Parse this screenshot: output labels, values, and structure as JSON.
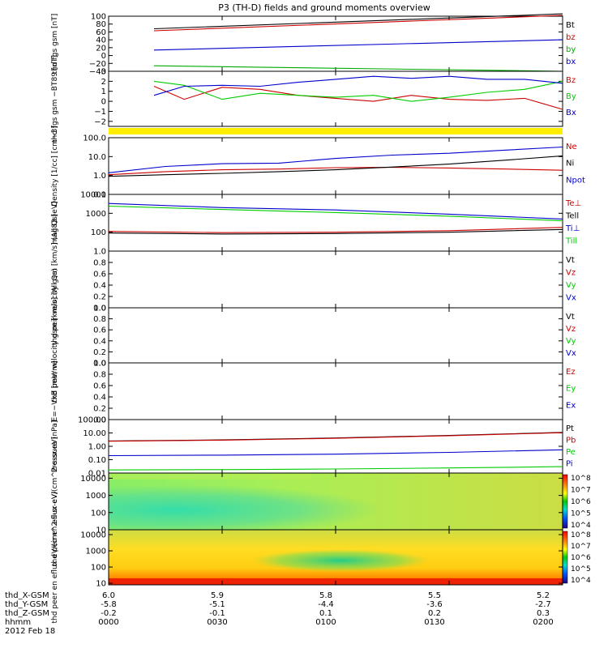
{
  "title": "P3 (TH-D) fields and ground moments overview",
  "x_axis": {
    "labels": [
      "6.0",
      "5.9",
      "5.8",
      "5.5",
      "5.2"
    ],
    "rows": [
      {
        "label": "thd_X-GSM",
        "values": [
          "6.0",
          "5.9",
          "5.8",
          "5.5",
          "5.2"
        ]
      },
      {
        "label": "thd_Y-GSM",
        "values": [
          "-5.8",
          "-5.1",
          "-4.4",
          "-3.6",
          "-2.7"
        ]
      },
      {
        "label": "thd_Z-GSM",
        "values": [
          "-0.2",
          "-0.1",
          "0.1",
          "0.2",
          "0.3"
        ]
      },
      {
        "label": "hhmm",
        "values": [
          "0000",
          "0030",
          "0100",
          "0130",
          "0200"
        ]
      }
    ],
    "date": "2012 Feb 18"
  },
  "colorbar_labels": [
    "10^8",
    "10^7",
    "10^6",
    "10^5",
    "10^4"
  ],
  "colors": {
    "black": "#000000",
    "red": "#cc0000",
    "green": "#00cc00",
    "blue": "#0000cc",
    "yellow": "#ffee00"
  },
  "chart_data": [
    {
      "type": "line",
      "ylabel": "thd fgs gsm [nT]",
      "ylim": [
        -40,
        100
      ],
      "yticks": [
        "100",
        "80",
        "60",
        "40",
        "20",
        "0",
        "−20",
        "−40"
      ],
      "x": [
        "00:12",
        "02:00"
      ],
      "series": [
        {
          "name": "Bt",
          "color": "#000000",
          "values": [
            68,
            106
          ]
        },
        {
          "name": "bz",
          "color": "#cc0000",
          "values": [
            63,
            102
          ]
        },
        {
          "name": "by",
          "color": "#00aa00",
          "values": [
            -26,
            -40
          ]
        },
        {
          "name": "bx",
          "color": "#0000cc",
          "values": [
            14,
            40
          ]
        }
      ]
    },
    {
      "type": "line",
      "ylabel": "thd fgs gsm −BT89 [nT]",
      "ylim": [
        -2.5,
        3
      ],
      "yticks": [
        "3",
        "2",
        "1",
        "0",
        "−1",
        "−2"
      ],
      "x": [
        "00:12",
        "00:20",
        "00:30",
        "00:40",
        "00:50",
        "01:00",
        "01:10",
        "01:20",
        "01:30",
        "01:40",
        "01:50",
        "02:00"
      ],
      "series": [
        {
          "name": "Bz",
          "color": "#cc0000",
          "values": [
            1.5,
            0.2,
            1.4,
            1.2,
            0.6,
            0.3,
            0.0,
            0.6,
            0.2,
            0.1,
            0.3,
            -0.8
          ]
        },
        {
          "name": "By",
          "color": "#00cc00",
          "values": [
            2.0,
            1.6,
            0.2,
            0.8,
            0.6,
            0.4,
            0.6,
            0.0,
            0.4,
            0.9,
            1.2,
            2.0
          ]
        },
        {
          "name": "Bx",
          "color": "#0000cc",
          "values": [
            0.6,
            1.5,
            1.6,
            1.5,
            1.9,
            2.2,
            2.5,
            2.3,
            2.5,
            2.2,
            2.2,
            1.8
          ]
        }
      ]
    },
    {
      "type": "line",
      "ylabel": "Density [1/cc] [cm−3]",
      "yscale": "log",
      "ylim": [
        0.1,
        100
      ],
      "yticks": [
        "100.0",
        "10.0",
        "1.0",
        "0.1"
      ],
      "x": [
        "00:00",
        "00:15",
        "00:30",
        "00:45",
        "01:00",
        "01:15",
        "01:30",
        "01:45",
        "02:00"
      ],
      "series": [
        {
          "name": "Ne",
          "color": "#cc0000",
          "values": [
            1.1,
            1.6,
            2.0,
            2.2,
            2.6,
            2.7,
            2.5,
            2.2,
            1.9
          ]
        },
        {
          "name": "Ni",
          "color": "#000000",
          "values": [
            0.9,
            1.1,
            1.3,
            1.6,
            2.0,
            2.8,
            4.0,
            6.5,
            11.0
          ]
        },
        {
          "name": "Npot",
          "color": "#0000cc",
          "values": [
            1.4,
            3.0,
            4.2,
            4.5,
            8.0,
            12.0,
            15.0,
            22.0,
            32.0
          ]
        }
      ]
    },
    {
      "type": "line",
      "ylabel": "mag83 [eV]",
      "yscale": "log",
      "ylim": [
        10,
        10000
      ],
      "yticks": [
        "10000",
        "1000",
        "100"
      ],
      "x": [
        "00:00",
        "00:30",
        "01:00",
        "01:30",
        "02:00"
      ],
      "series": [
        {
          "name": "Te⊥",
          "color": "#cc0000",
          "values": [
            110,
            95,
            100,
            120,
            180
          ]
        },
        {
          "name": "Tell",
          "color": "#000000",
          "values": [
            90,
            80,
            85,
            100,
            140
          ]
        },
        {
          "name": "Ti⊥",
          "color": "#0000cc",
          "values": [
            3300,
            2000,
            1500,
            900,
            500
          ]
        },
        {
          "name": "Till",
          "color": "#00cc00",
          "values": [
            2400,
            1600,
            1100,
            700,
            400
          ]
        }
      ]
    },
    {
      "type": "line",
      "ylabel": "thd peir velocity gsm [km/s] (All Qs)",
      "ylim": [
        0,
        1
      ],
      "yticks": [
        "1.0",
        "0.8",
        "0.6",
        "0.4",
        "0.2",
        "0.0"
      ],
      "series": [
        {
          "name": "Vt",
          "color": "#000000",
          "values": []
        },
        {
          "name": "Vz",
          "color": "#cc0000",
          "values": []
        },
        {
          "name": "Vy",
          "color": "#00cc00",
          "values": []
        },
        {
          "name": "Vx",
          "color": "#0000cc",
          "values": []
        }
      ]
    },
    {
      "type": "line",
      "ylabel": "thd peer velocity gsm [km/s] (All Qs)",
      "ylim": [
        0,
        1
      ],
      "yticks": [
        "1.0",
        "0.8",
        "0.6",
        "0.4",
        "0.2",
        "0.0"
      ],
      "series": [
        {
          "name": "Vt",
          "color": "#000000",
          "values": []
        },
        {
          "name": "Vz",
          "color": "#cc0000",
          "values": []
        },
        {
          "name": "Vy",
          "color": "#00cc00",
          "values": []
        },
        {
          "name": "Vx",
          "color": "#0000cc",
          "values": []
        }
      ]
    },
    {
      "type": "line",
      "ylabel": "E=−VxB [mV/m]",
      "ylim": [
        0,
        1
      ],
      "yticks": [
        "1.0",
        "0.8",
        "0.6",
        "0.4",
        "0.2",
        "0.0"
      ],
      "series": [
        {
          "name": "Ez",
          "color": "#cc0000",
          "values": []
        },
        {
          "name": "Ey",
          "color": "#00cc00",
          "values": []
        },
        {
          "name": "Ex",
          "color": "#0000cc",
          "values": []
        }
      ]
    },
    {
      "type": "line",
      "ylabel": "Pressure [nPa]",
      "yscale": "log",
      "ylim": [
        0.01,
        100
      ],
      "yticks": [
        "100.00",
        "10.00",
        "1.00",
        "0.10",
        "0.01"
      ],
      "x": [
        "00:00",
        "00:30",
        "01:00",
        "01:30",
        "02:00"
      ],
      "series": [
        {
          "name": "Pt",
          "color": "#000000",
          "values": [
            2.5,
            3.0,
            4.2,
            6.5,
            11.0
          ]
        },
        {
          "name": "Pb",
          "color": "#cc0000",
          "values": [
            2.4,
            2.9,
            4.0,
            6.2,
            10.5
          ]
        },
        {
          "name": "Pe",
          "color": "#00cc00",
          "values": [
            0.017,
            0.018,
            0.02,
            0.024,
            0.03
          ]
        },
        {
          "name": "Pi",
          "color": "#0000cc",
          "values": [
            0.2,
            0.22,
            0.26,
            0.35,
            0.55
          ]
        }
      ]
    },
    {
      "type": "heatmap",
      "ylabel": "thd peir en eflux eV/(cm^2-s-sr-eV)",
      "yscale": "log",
      "ylim": [
        10,
        20000
      ],
      "yticks": [
        "10000",
        "1000",
        "100",
        "10"
      ]
    },
    {
      "type": "heatmap",
      "ylabel": "thd peer en eflux eV/(cm^2-s-sr-eV)",
      "yscale": "log",
      "ylim": [
        8,
        20000
      ],
      "yticks": [
        "10000",
        "1000",
        "100",
        "10"
      ]
    }
  ]
}
